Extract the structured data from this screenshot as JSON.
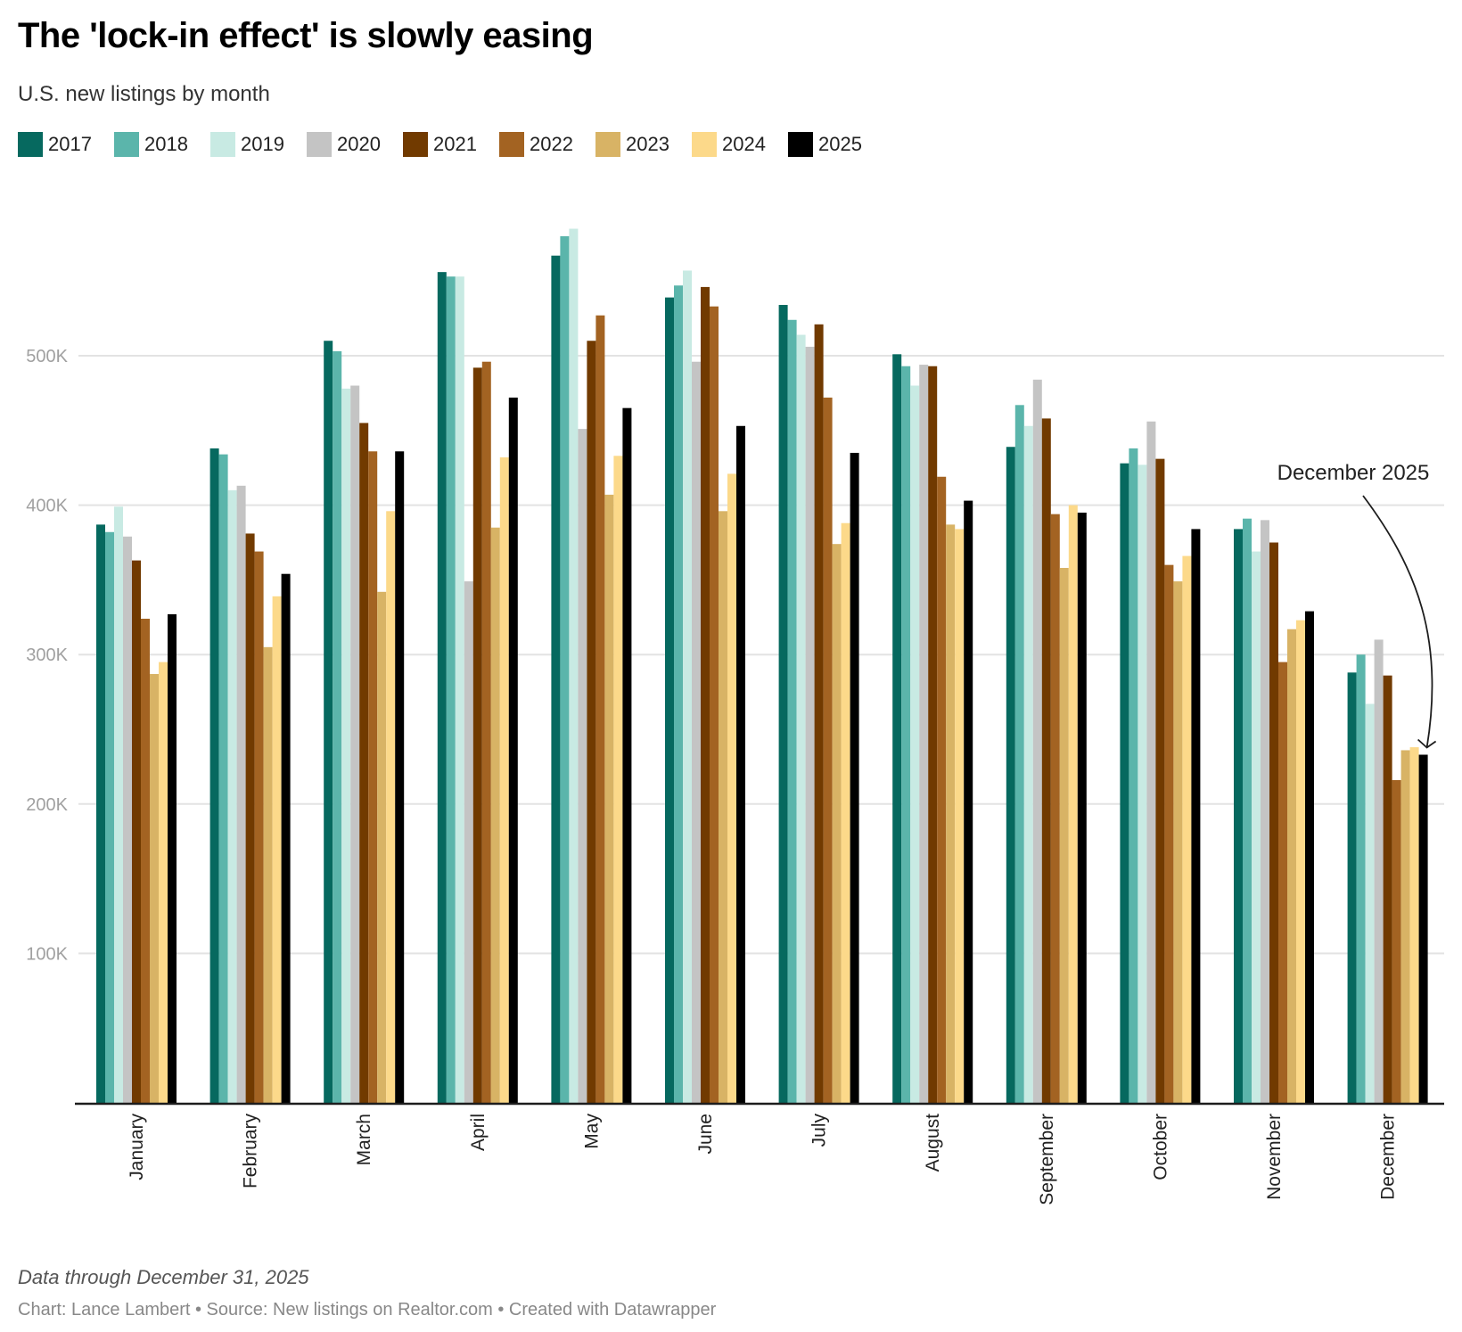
{
  "header": {
    "title": "The 'lock-in effect' is slowly easing",
    "subtitle": "U.S. new listings by month"
  },
  "footer": {
    "note": "Data through December 31, 2025",
    "credit": "Chart: Lance Lambert • Source: New listings on Realtor.com • Created with Datawrapper"
  },
  "chart_data": {
    "type": "bar",
    "title": "The 'lock-in effect' is slowly easing",
    "subtitle": "U.S. new listings by month",
    "xlabel": "",
    "ylabel": "",
    "ylim": [
      0,
      600000
    ],
    "yticks": [
      100000,
      200000,
      300000,
      400000,
      500000
    ],
    "ytick_labels": [
      "100K",
      "200K",
      "300K",
      "400K",
      "500K"
    ],
    "grid": true,
    "legend_position": "top-left",
    "categories": [
      "January",
      "February",
      "March",
      "April",
      "May",
      "June",
      "July",
      "August",
      "September",
      "October",
      "November",
      "December"
    ],
    "series": [
      {
        "name": "2017",
        "color": "#06695f",
        "values": [
          387000,
          438000,
          510000,
          556000,
          567000,
          539000,
          534000,
          501000,
          439000,
          428000,
          384000,
          288000
        ]
      },
      {
        "name": "2018",
        "color": "#5bb5ab",
        "values": [
          382000,
          434000,
          503000,
          553000,
          580000,
          547000,
          524000,
          493000,
          467000,
          438000,
          391000,
          300000
        ]
      },
      {
        "name": "2019",
        "color": "#c8eae3",
        "values": [
          399000,
          410000,
          478000,
          553000,
          585000,
          557000,
          514000,
          480000,
          453000,
          427000,
          369000,
          267000
        ]
      },
      {
        "name": "2020",
        "color": "#c4c4c4",
        "values": [
          379000,
          413000,
          480000,
          349000,
          451000,
          496000,
          506000,
          494000,
          484000,
          456000,
          390000,
          310000
        ]
      },
      {
        "name": "2021",
        "color": "#713a00",
        "values": [
          363000,
          381000,
          455000,
          492000,
          510000,
          546000,
          521000,
          493000,
          458000,
          431000,
          375000,
          286000
        ]
      },
      {
        "name": "2022",
        "color": "#a36322",
        "values": [
          324000,
          369000,
          436000,
          496000,
          527000,
          533000,
          472000,
          419000,
          394000,
          360000,
          295000,
          216000
        ]
      },
      {
        "name": "2023",
        "color": "#d8b365",
        "values": [
          287000,
          305000,
          342000,
          385000,
          407000,
          396000,
          374000,
          387000,
          358000,
          349000,
          317000,
          236000
        ]
      },
      {
        "name": "2024",
        "color": "#fcd98a",
        "values": [
          295000,
          339000,
          396000,
          432000,
          433000,
          421000,
          388000,
          384000,
          400000,
          366000,
          323000,
          238000
        ]
      },
      {
        "name": "2025",
        "color": "#000000",
        "values": [
          327000,
          354000,
          436000,
          472000,
          465000,
          453000,
          435000,
          403000,
          395000,
          384000,
          329000,
          233000
        ]
      }
    ],
    "annotations": [
      {
        "text": "December 2025",
        "points_to": {
          "category": "December",
          "series": "2025"
        }
      }
    ]
  }
}
